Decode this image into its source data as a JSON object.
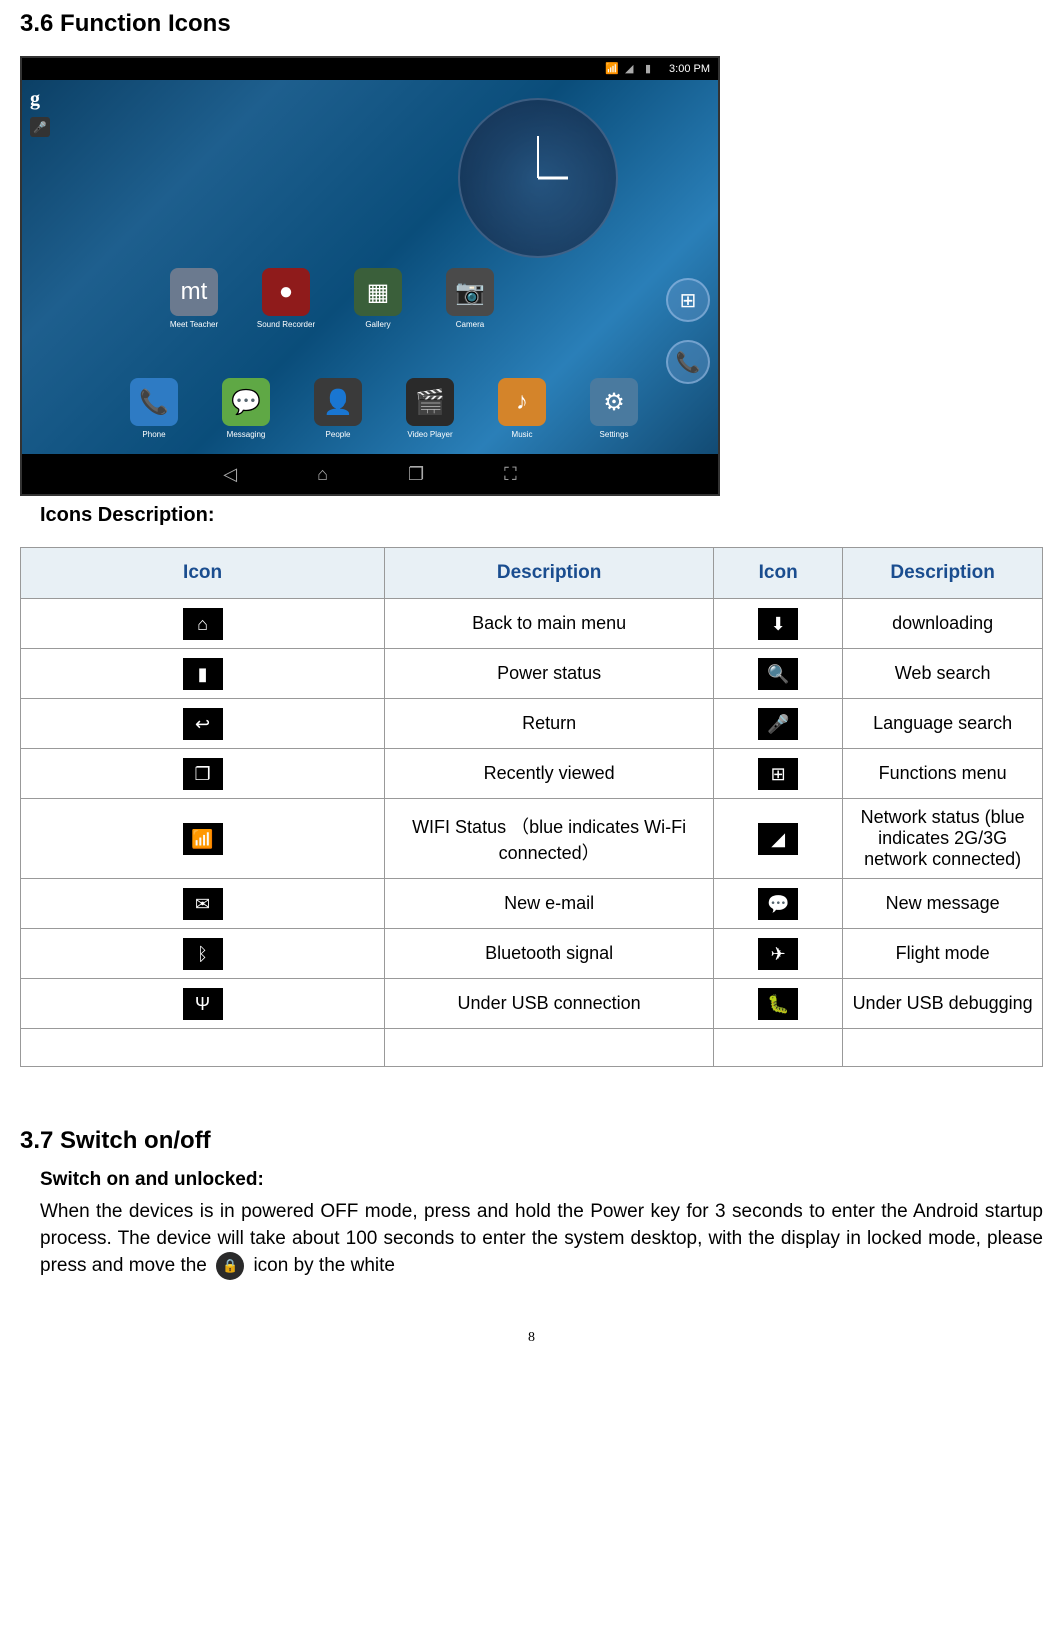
{
  "section36": {
    "heading": "3.6 Function Icons",
    "icons_description_label": "Icons Description:"
  },
  "tablet": {
    "time": "3:00 PM",
    "apps_row1": [
      {
        "label": "Meet Teacher",
        "bg": "#6b7a8f",
        "glyph": "mt"
      },
      {
        "label": "Sound Recorder",
        "bg": "#8f1b1b",
        "glyph": "●"
      },
      {
        "label": "Gallery",
        "bg": "#3a5f3a",
        "glyph": "▦"
      },
      {
        "label": "Camera",
        "bg": "#4a4a4a",
        "glyph": "📷"
      }
    ],
    "apps_row2": [
      {
        "label": "Phone",
        "bg": "#2e7bc4",
        "glyph": "📞"
      },
      {
        "label": "Messaging",
        "bg": "#5fa845",
        "glyph": "💬"
      },
      {
        "label": "People",
        "bg": "#3a3a3a",
        "glyph": "👤"
      },
      {
        "label": "Video Player",
        "bg": "#2a2a2a",
        "glyph": "🎬"
      },
      {
        "label": "Music",
        "bg": "#d4842a",
        "glyph": "♪"
      },
      {
        "label": "Settings",
        "bg": "#4a7a9f",
        "glyph": "⚙"
      }
    ]
  },
  "table": {
    "headers": [
      "Icon",
      "Description",
      "Icon",
      "Description"
    ],
    "rows": [
      {
        "icon1": "⌂",
        "desc1": "Back to main menu",
        "icon2": "⬇",
        "desc2": "downloading"
      },
      {
        "icon1": "▮",
        "desc1": "Power status",
        "icon2": "🔍",
        "desc2": "Web search"
      },
      {
        "icon1": "↩",
        "desc1": "Return",
        "icon2": "🎤",
        "desc2": "Language search"
      },
      {
        "icon1": "❐",
        "desc1": "Recently viewed",
        "icon2": "⊞",
        "desc2": "Functions menu"
      },
      {
        "icon1": "📶",
        "desc1": "WIFI Status （blue indicates Wi-Fi connected）",
        "icon2": "◢",
        "desc2": "Network status (blue indicates 2G/3G network connected)"
      },
      {
        "icon1": "✉",
        "desc1": "New e-mail",
        "icon2": "💬",
        "desc2": "New message"
      },
      {
        "icon1": "ᛒ",
        "desc1": "Bluetooth signal",
        "icon2": "✈",
        "desc2": "Flight mode"
      },
      {
        "icon1": "Ψ",
        "desc1": "Under USB connection",
        "icon2": "🐛",
        "desc2": "Under USB debugging"
      }
    ]
  },
  "section37": {
    "heading": "3.7 Switch on/off",
    "sub_heading": "Switch on and unlocked:",
    "body_part1": "When the devices is in powered OFF mode, press and hold the Power key for 3 seconds to enter the Android startup process. The device will take about 100 seconds to enter the system desktop, with the display in locked mode, please press and move the ",
    "body_part2": " icon by the white"
  },
  "page_number": "8",
  "colors": {
    "table_header_bg": "#e8f0f5",
    "table_header_text": "#1a4d8f",
    "table_border": "#999999",
    "icon_bg": "#000000"
  }
}
